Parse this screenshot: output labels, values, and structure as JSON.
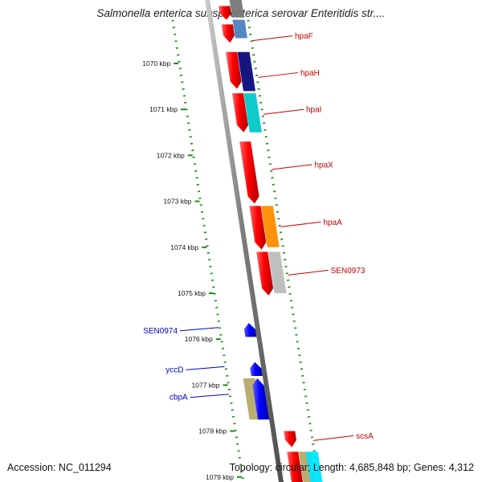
{
  "header": {
    "title": "Salmonella enterica subsp. enterica serovar Enteritidis str...."
  },
  "footer": {
    "accession": "Accession: NC_011294",
    "topology": "Topology: circular; Length: 4,685,848 bp; Genes: 4,312"
  },
  "map": {
    "ticks": [
      {
        "kbp": 1070,
        "label": "1070 kbp"
      },
      {
        "kbp": 1071,
        "label": "1071 kbp"
      },
      {
        "kbp": 1072,
        "label": "1072 kbp"
      },
      {
        "kbp": 1073,
        "label": "1073 kbp"
      },
      {
        "kbp": 1074,
        "label": "1074 kbp"
      },
      {
        "kbp": 1075,
        "label": "1075 kbp"
      },
      {
        "kbp": 1076,
        "label": "1076 kbp"
      },
      {
        "kbp": 1077,
        "label": "1077 kbp"
      },
      {
        "kbp": 1078,
        "label": "1078 kbp"
      },
      {
        "kbp": 1079,
        "label": "1079 kbp"
      }
    ],
    "forward_label_color": "#cc0000",
    "reverse_label_color": "#0000cc",
    "genes": [
      {
        "name": "hpaF",
        "strand": "forward",
        "start_kbp": 1069.15,
        "end_kbp": 1069.55,
        "color": "#ff0000",
        "labeled": true,
        "label_kbp": 1069.4
      },
      {
        "name": "",
        "strand": "forward",
        "start_kbp": 1068.75,
        "end_kbp": 1069.05,
        "color": "#ff0000",
        "labeled": false
      },
      {
        "name": "hpaH",
        "strand": "forward",
        "start_kbp": 1069.75,
        "end_kbp": 1070.55,
        "color": "#ff0000",
        "labeled": true,
        "label_kbp": 1070.2
      },
      {
        "name": "hpaI",
        "strand": "forward",
        "start_kbp": 1070.65,
        "end_kbp": 1071.5,
        "color": "#ff0000",
        "labeled": true,
        "label_kbp": 1071.0
      },
      {
        "name": "hpaX",
        "strand": "forward",
        "start_kbp": 1071.7,
        "end_kbp": 1073.05,
        "color": "#ff0000",
        "labeled": true,
        "label_kbp": 1072.2
      },
      {
        "name": "hpaA",
        "strand": "forward",
        "start_kbp": 1073.1,
        "end_kbp": 1074.05,
        "color": "#ff0000",
        "labeled": true,
        "label_kbp": 1073.45
      },
      {
        "name": "SEN0973",
        "strand": "forward",
        "start_kbp": 1074.1,
        "end_kbp": 1075.05,
        "color": "#ff0000",
        "labeled": true,
        "label_kbp": 1074.5
      },
      {
        "name": "SEN0974",
        "strand": "reverse",
        "start_kbp": 1075.65,
        "end_kbp": 1075.95,
        "color": "#0000ff",
        "labeled": true,
        "label_kbp": 1075.8
      },
      {
        "name": "yccD",
        "strand": "reverse",
        "start_kbp": 1076.5,
        "end_kbp": 1076.8,
        "color": "#0000ff",
        "labeled": true,
        "label_kbp": 1076.65
      },
      {
        "name": "cbpA",
        "strand": "reverse",
        "start_kbp": 1076.85,
        "end_kbp": 1077.75,
        "color": "#0000ff",
        "labeled": true,
        "label_kbp": 1077.25
      },
      {
        "name": "scsA",
        "strand": "forward",
        "start_kbp": 1078.0,
        "end_kbp": 1078.35,
        "color": "#ff0000",
        "labeled": true,
        "label_kbp": 1078.1
      },
      {
        "name": "",
        "strand": "forward",
        "start_kbp": 1078.45,
        "end_kbp": 1079.3,
        "color": "#ff0000",
        "labeled": false
      }
    ],
    "cog_blocks": [
      {
        "track": "outer",
        "start_kbp": 1068.6,
        "end_kbp": 1069.0,
        "color": "#777777"
      },
      {
        "track": "outer",
        "start_kbp": 1069.05,
        "end_kbp": 1069.45,
        "color": "#4a7fc1"
      },
      {
        "track": "outer",
        "start_kbp": 1069.75,
        "end_kbp": 1070.6,
        "color": "#0a0a7a"
      },
      {
        "track": "outer",
        "start_kbp": 1070.65,
        "end_kbp": 1071.5,
        "color": "#00c8c8"
      },
      {
        "track": "outer",
        "start_kbp": 1073.1,
        "end_kbp": 1074.0,
        "color": "#ff8c00"
      },
      {
        "track": "outer",
        "start_kbp": 1074.1,
        "end_kbp": 1075.0,
        "color": "#bdbdbd"
      },
      {
        "track": "inner",
        "start_kbp": 1076.85,
        "end_kbp": 1077.75,
        "color": "#b5a96a"
      },
      {
        "track": "outer",
        "start_kbp": 1078.45,
        "end_kbp": 1079.3,
        "color": "#b5a96a"
      },
      {
        "track": "outer2",
        "start_kbp": 1078.45,
        "end_kbp": 1079.3,
        "color": "#00e5ff"
      }
    ]
  }
}
